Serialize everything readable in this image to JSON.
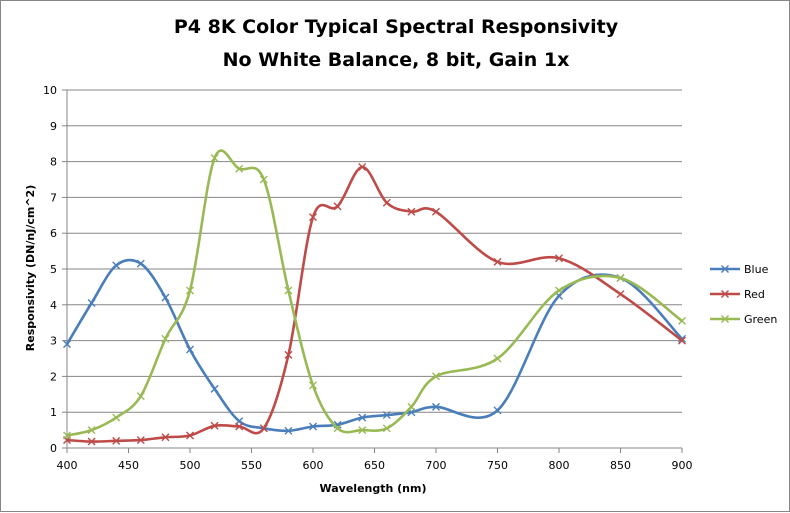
{
  "chart_data": {
    "type": "line",
    "title_line1": "P4 8K Color Typical Spectral Responsivity",
    "title_line2": "No White Balance, 8 bit, Gain 1x",
    "xlabel": "Wavelength (nm)",
    "ylabel": "Responsivity (DN/nJ/cm^2)",
    "xlim": [
      400,
      900
    ],
    "ylim": [
      0,
      10
    ],
    "x_ticks": [
      400,
      450,
      500,
      550,
      600,
      650,
      700,
      750,
      800,
      850,
      900
    ],
    "y_ticks": [
      0,
      1,
      2,
      3,
      4,
      5,
      6,
      7,
      8,
      9,
      10
    ],
    "grid": "horizontal",
    "legend_position": "right",
    "series": [
      {
        "name": "Blue",
        "color": "#4A7EBB",
        "x": [
          400,
          420,
          440,
          460,
          480,
          500,
          520,
          540,
          560,
          580,
          600,
          620,
          640,
          660,
          680,
          700,
          750,
          800,
          850,
          900
        ],
        "y": [
          2.9,
          4.05,
          5.1,
          5.15,
          4.2,
          2.75,
          1.65,
          0.75,
          0.55,
          0.48,
          0.6,
          0.65,
          0.85,
          0.92,
          1.0,
          1.15,
          1.05,
          4.25,
          4.75,
          3.05
        ]
      },
      {
        "name": "Red",
        "color": "#BE4B48",
        "x": [
          400,
          420,
          440,
          460,
          480,
          500,
          520,
          540,
          560,
          580,
          600,
          620,
          640,
          660,
          680,
          700,
          750,
          800,
          850,
          900
        ],
        "y": [
          0.22,
          0.18,
          0.2,
          0.22,
          0.3,
          0.35,
          0.62,
          0.6,
          0.55,
          2.6,
          6.45,
          6.75,
          7.85,
          6.85,
          6.6,
          6.6,
          5.2,
          5.3,
          4.3,
          3.0
        ]
      },
      {
        "name": "Green",
        "color": "#98B954",
        "x": [
          400,
          420,
          440,
          460,
          480,
          500,
          520,
          540,
          560,
          580,
          600,
          620,
          640,
          660,
          680,
          700,
          750,
          800,
          850,
          900
        ],
        "y": [
          0.35,
          0.5,
          0.85,
          1.45,
          3.05,
          4.4,
          8.1,
          7.8,
          7.5,
          4.4,
          1.75,
          0.55,
          0.5,
          0.55,
          1.15,
          2.0,
          2.5,
          4.4,
          4.75,
          3.55
        ]
      }
    ]
  }
}
